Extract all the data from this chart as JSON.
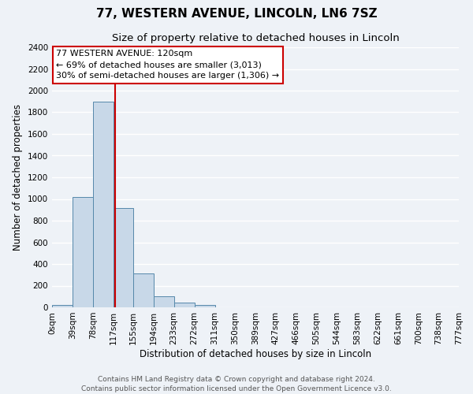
{
  "title": "77, WESTERN AVENUE, LINCOLN, LN6 7SZ",
  "subtitle": "Size of property relative to detached houses in Lincoln",
  "xlabel": "Distribution of detached houses by size in Lincoln",
  "ylabel": "Number of detached properties",
  "bin_edges": [
    0,
    39,
    78,
    117,
    155,
    194,
    233,
    272,
    311,
    350,
    389,
    427,
    466,
    505,
    544,
    583,
    622,
    661,
    700,
    738,
    777
  ],
  "bin_labels": [
    "0sqm",
    "39sqm",
    "78sqm",
    "117sqm",
    "155sqm",
    "194sqm",
    "233sqm",
    "272sqm",
    "311sqm",
    "350sqm",
    "389sqm",
    "427sqm",
    "466sqm",
    "505sqm",
    "544sqm",
    "583sqm",
    "622sqm",
    "661sqm",
    "700sqm",
    "738sqm",
    "777sqm"
  ],
  "bar_heights": [
    20,
    1020,
    1900,
    920,
    315,
    105,
    45,
    20,
    0,
    0,
    0,
    0,
    0,
    0,
    0,
    0,
    0,
    0,
    0,
    0
  ],
  "bar_color": "#c8d8e8",
  "bar_edge_color": "#5588aa",
  "property_line_x": 120,
  "property_line_color": "#cc0000",
  "ylim": [
    0,
    2400
  ],
  "yticks": [
    0,
    200,
    400,
    600,
    800,
    1000,
    1200,
    1400,
    1600,
    1800,
    2000,
    2200,
    2400
  ],
  "annotation_title": "77 WESTERN AVENUE: 120sqm",
  "annotation_line1": "← 69% of detached houses are smaller (3,013)",
  "annotation_line2": "30% of semi-detached houses are larger (1,306) →",
  "annotation_box_color": "#ffffff",
  "annotation_box_edge_color": "#cc0000",
  "footer_line1": "Contains HM Land Registry data © Crown copyright and database right 2024.",
  "footer_line2": "Contains public sector information licensed under the Open Government Licence v3.0.",
  "background_color": "#eef2f7",
  "grid_color": "#ffffff",
  "title_fontsize": 11,
  "subtitle_fontsize": 9.5,
  "axis_label_fontsize": 8.5,
  "tick_fontsize": 7.5,
  "footer_fontsize": 6.5,
  "annotation_fontsize": 8
}
